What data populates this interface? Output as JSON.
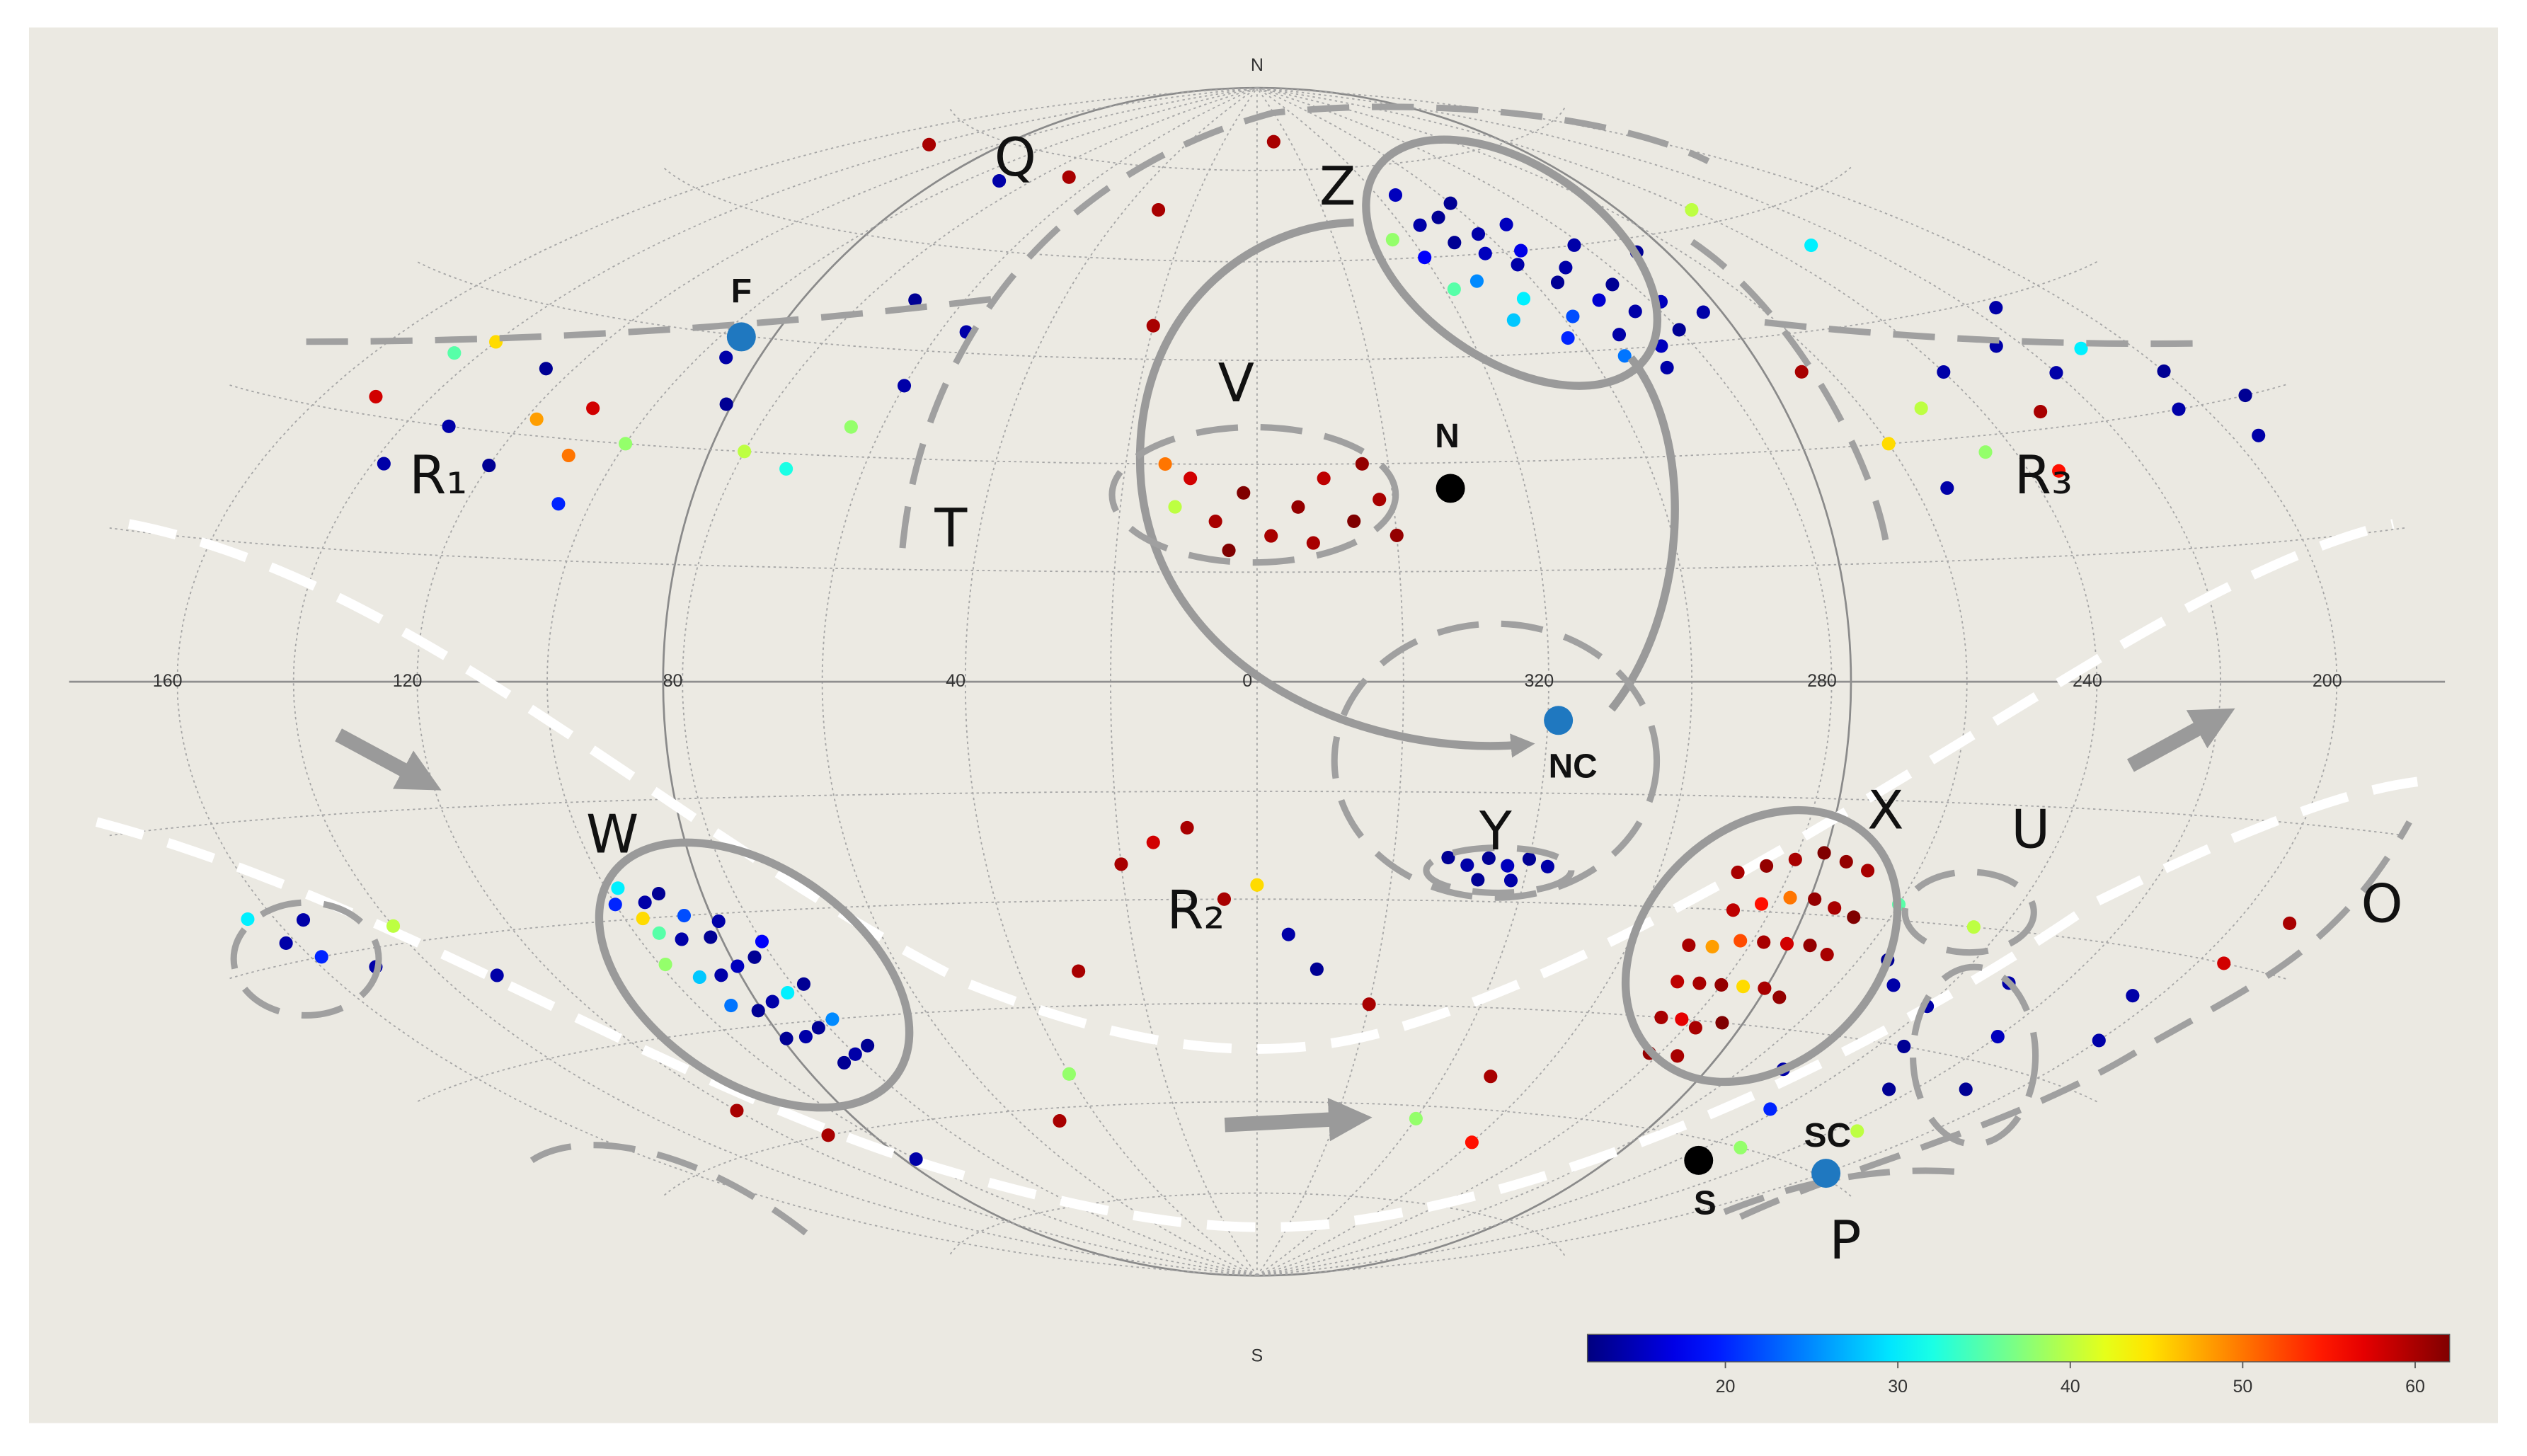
{
  "chart_data": {
    "type": "scatter",
    "projection": "hammer",
    "colormap": "jet",
    "xlim": [
      180,
      -180
    ],
    "ylim": [
      -90,
      90
    ],
    "xticks": [
      160,
      120,
      80,
      40,
      0,
      {
        "value": -40,
        "label": "320"
      },
      {
        "value": -80,
        "label": "280"
      },
      {
        "value": -120,
        "label": "240"
      },
      {
        "value": -160,
        "label": "200"
      }
    ],
    "pole_labels": [
      "N",
      "S"
    ],
    "grid": true,
    "colorbar": {
      "clim": [
        12,
        62
      ],
      "ticks": [
        20,
        30,
        40,
        50,
        60
      ]
    },
    "annotations": [
      "Q",
      "Z",
      "F",
      "V",
      "N",
      "T",
      "R₁",
      "R₃",
      "NC",
      "W",
      "Y",
      "X",
      "U",
      "O",
      "R₂",
      "SC",
      "S",
      "P"
    ],
    "x": [
      -45,
      -50,
      -55,
      -60,
      -65,
      -70,
      -75,
      -80,
      -40,
      -48,
      -55,
      -62,
      -68,
      -74,
      -52,
      -58,
      -64,
      -70,
      -76,
      -82,
      -88,
      -42,
      -50,
      -58,
      -66,
      -72,
      -60,
      -68,
      -35,
      -90,
      -78,
      -46,
      98,
      95,
      92,
      90,
      96,
      93,
      88,
      85,
      99,
      95,
      91,
      87,
      83,
      80,
      94,
      90,
      86,
      82,
      78,
      90,
      86,
      82,
      78,
      84,
      80,
      76,
      97,
      100,
      -72,
      -76,
      -80,
      -84,
      -88,
      -92,
      -74,
      -78,
      -82,
      -86,
      -90,
      -94,
      -70,
      -74,
      -78,
      -82,
      -86,
      -90,
      -94,
      -72,
      -76,
      -80,
      -84,
      -88,
      -92,
      -74,
      -78,
      -82,
      -86,
      -78,
      -84,
      -18,
      -14,
      -10,
      -6,
      -2,
      2,
      6,
      10,
      14,
      -16,
      -8,
      4,
      12,
      -20,
      -28,
      -31,
      -34,
      -37,
      -40,
      -43,
      -33,
      -38,
      150,
      145,
      140,
      138,
      132,
      125,
      120,
      118,
      110,
      108,
      105,
      100,
      95,
      88,
      80,
      72,
      65,
      60,
      55,
      70,
      -110,
      -115,
      -120,
      -125,
      -130,
      -135,
      -140,
      -145,
      -150,
      -155,
      -160,
      -105,
      -100,
      -95,
      -165,
      -170,
      -105,
      -110,
      -115,
      -120,
      -125,
      -130,
      -135,
      -140,
      -145,
      -150,
      -155,
      -160,
      -165,
      -170,
      -100,
      -108,
      -118,
      -128,
      165,
      162,
      158,
      155,
      150,
      140,
      130,
      120,
      110,
      100,
      20,
      15,
      10,
      5,
      0,
      -5,
      -10,
      -20,
      30,
      40,
      50,
      -50,
      -60,
      -40,
      90,
      70,
      30,
      20,
      -10,
      -120,
      -130,
      140
    ],
    "y": [
      65,
      62,
      60,
      58,
      55,
      52,
      50,
      47,
      60,
      56,
      53,
      50,
      47,
      45,
      66,
      63,
      60,
      57,
      54,
      51,
      49,
      55,
      50,
      47,
      44,
      42,
      68,
      64,
      63,
      58,
      60,
      70,
      -26,
      -28,
      -27,
      -30,
      -32,
      -33,
      -33,
      -31,
      -36,
      -38,
      -38,
      -37,
      -36,
      -34,
      -42,
      -43,
      -42,
      -41,
      -40,
      -47,
      -47,
      -46,
      -45,
      -51,
      -50,
      -49,
      -30,
      -28,
      -25,
      -24,
      -23,
      -22,
      -23,
      -24,
      -30,
      -29,
      -28,
      -28,
      -29,
      -30,
      -35,
      -35,
      -34,
      -34,
      -34,
      -34,
      -35,
      -40,
      -40,
      -40,
      -40,
      -40,
      -41,
      -45,
      -45,
      -46,
      -45,
      -50,
      -50,
      25,
      22,
      28,
      24,
      20,
      26,
      22,
      28,
      30,
      30,
      19,
      18,
      24,
      20,
      -24,
      -25,
      -24,
      -25,
      -24,
      -25,
      -27,
      -27,
      32,
      38,
      40,
      25,
      30,
      38,
      26,
      32,
      34,
      28,
      22,
      30,
      42,
      36,
      30,
      28,
      34,
      40,
      48,
      52,
      34,
      28,
      38,
      25,
      32,
      40,
      36,
      44,
      38,
      30,
      34,
      24,
      30,
      40,
      26,
      30,
      -35,
      -38,
      -30,
      -40,
      -45,
      -36,
      -50,
      -42,
      -55,
      -48,
      -35,
      -40,
      -30,
      -25,
      -28,
      -50,
      -55,
      -60,
      -25,
      -28,
      -30,
      -26,
      -32,
      -28,
      -35,
      -55,
      -60,
      -65,
      -25,
      -22,
      -20,
      -30,
      -28,
      -35,
      -40,
      -45,
      -40,
      -55,
      -62,
      -55,
      -65,
      -62,
      70,
      72,
      68,
      50,
      80,
      62,
      55,
      72
    ],
    "values": [
      14,
      13,
      15,
      14,
      13,
      16,
      14,
      13,
      18,
      25,
      30,
      22,
      14,
      15,
      13,
      14,
      17,
      14,
      13,
      15,
      14,
      35,
      28,
      20,
      24,
      14,
      13,
      15,
      38,
      13,
      14,
      15,
      30,
      14,
      13,
      22,
      35,
      14,
      13,
      14,
      38,
      28,
      14,
      15,
      13,
      18,
      24,
      13,
      14,
      30,
      13,
      13,
      14,
      13,
      25,
      13,
      14,
      13,
      45,
      20,
      60,
      61,
      60,
      62,
      61,
      60,
      59,
      55,
      50,
      61,
      60,
      62,
      60,
      48,
      52,
      60,
      58,
      61,
      60,
      59,
      60,
      61,
      45,
      60,
      61,
      60,
      57,
      60,
      62,
      61,
      60,
      60,
      62,
      59,
      61,
      60,
      62,
      60,
      58,
      50,
      61,
      60,
      62,
      40,
      61,
      13,
      14,
      13,
      15,
      13,
      14,
      13,
      14,
      58,
      35,
      45,
      14,
      14,
      13,
      13,
      48,
      58,
      50,
      20,
      38,
      14,
      13,
      40,
      32,
      38,
      14,
      14,
      13,
      40,
      38,
      14,
      55,
      60,
      14,
      14,
      14,
      30,
      14,
      13,
      14,
      45,
      60,
      14,
      13,
      13,
      14,
      40,
      14,
      13,
      14,
      13,
      15,
      40,
      13,
      14,
      14,
      58,
      60,
      35,
      14,
      20,
      38,
      30,
      14,
      20,
      14,
      14,
      40,
      14,
      60,
      60,
      14,
      60,
      58,
      60,
      60,
      45,
      14,
      13,
      60,
      60,
      38,
      60,
      60,
      55,
      38,
      14,
      60,
      60,
      60,
      60,
      40,
      30,
      60
    ]
  }
}
